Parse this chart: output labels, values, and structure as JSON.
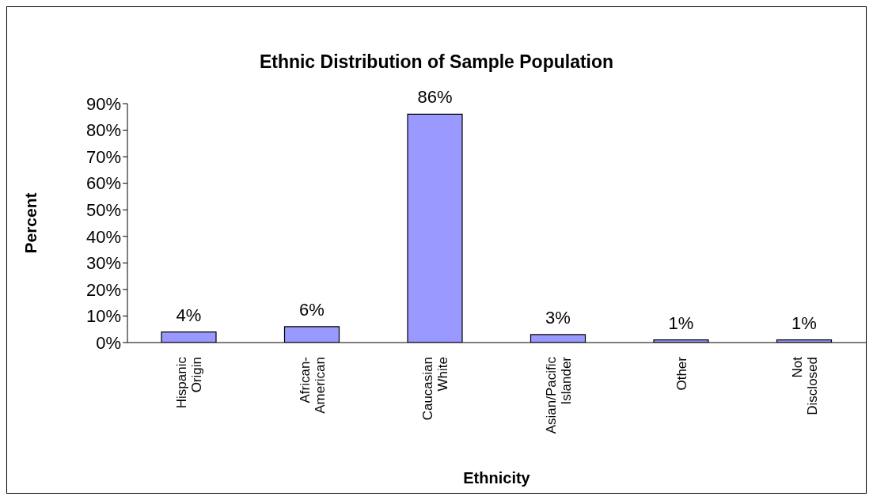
{
  "chart_data": {
    "type": "bar",
    "title": "Ethnic Distribution of Sample Population",
    "xlabel": "Ethnicity",
    "ylabel": "Percent",
    "categories": [
      "Hispanic Origin",
      "African-American",
      "Caucasian White",
      "Asian/Pacific Islander",
      "Other",
      "Not Disclosed"
    ],
    "values": [
      4,
      6,
      86,
      3,
      1,
      1
    ],
    "color": "#9999ff",
    "data_labels": true,
    "value_labels": [
      "4%",
      "6%",
      "86%",
      "3%",
      "1%",
      "1%"
    ],
    "ylim": [
      0,
      90
    ],
    "yticks": [
      {
        "value": 0,
        "label": "0%"
      },
      {
        "value": 10,
        "label": "10%"
      },
      {
        "value": 20,
        "label": "20%"
      },
      {
        "value": 30,
        "label": "30%"
      },
      {
        "value": 40,
        "label": "40%"
      },
      {
        "value": 50,
        "label": "50%"
      },
      {
        "value": 60,
        "label": "60%"
      },
      {
        "value": 70,
        "label": "70%"
      },
      {
        "value": 80,
        "label": "80%"
      },
      {
        "value": 90,
        "label": "90%"
      }
    ],
    "grid": false,
    "legend": false
  }
}
